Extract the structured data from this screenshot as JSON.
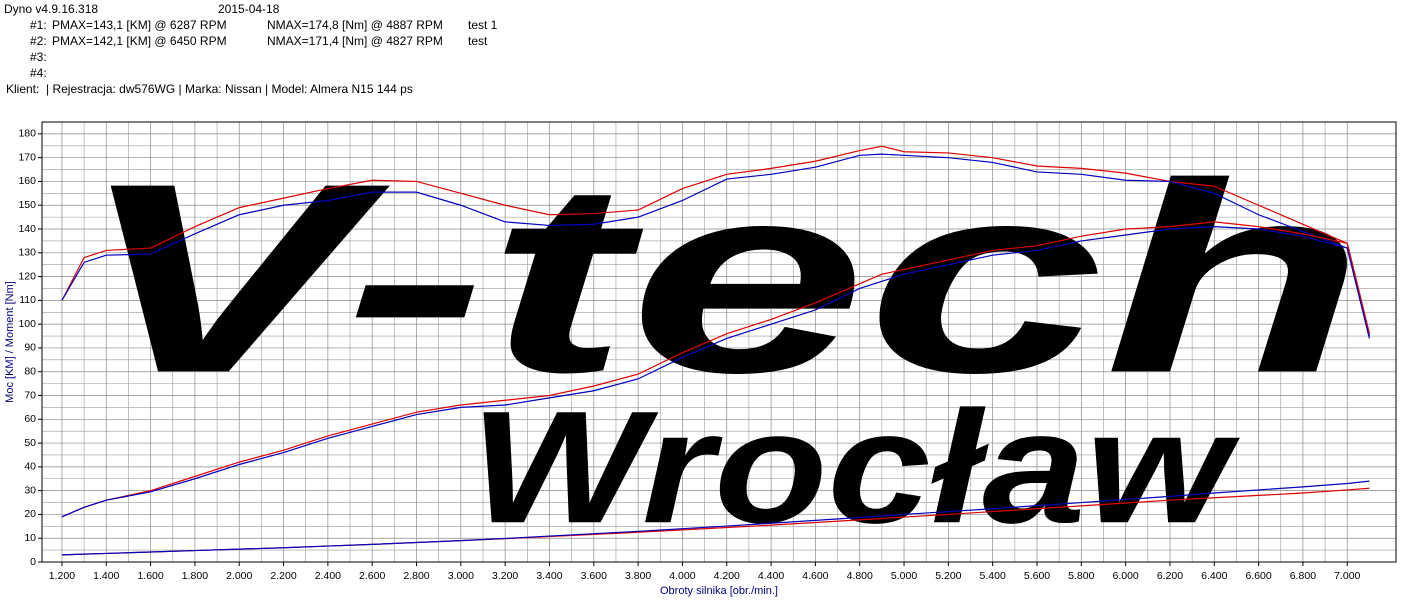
{
  "header": {
    "app": "Dyno v4.9.16.318",
    "date": "2015-04-18",
    "runs": [
      {
        "id": "#1:",
        "pmax": "PMAX=143,1 [KM] @ 6287 RPM",
        "nmax": "NMAX=174,8 [Nm] @ 4887 RPM",
        "note": "test 1"
      },
      {
        "id": "#2:",
        "pmax": "PMAX=142,1 [KM] @ 6450 RPM",
        "nmax": "NMAX=171,4 [Nm] @ 4827 RPM",
        "note": "test"
      },
      {
        "id": "#3:"
      },
      {
        "id": "#4:"
      }
    ],
    "client": "Klient:  | Rejestracja: dw576WG | Marka: Nissan | Model: Almera N15 144 ps"
  },
  "watermark": [
    "V-tech",
    "Wrocław"
  ],
  "chart_data": {
    "type": "line",
    "y_label": "Moc [KM] / Moment [Nm]",
    "x_label": "Obroty silnika [obr./min.]",
    "x": [
      1200,
      1300,
      1400,
      1600,
      1800,
      2000,
      2200,
      2400,
      2600,
      2800,
      3000,
      3200,
      3400,
      3600,
      3800,
      4000,
      4200,
      4400,
      4600,
      4800,
      4900,
      5000,
      5200,
      5400,
      5600,
      5800,
      6000,
      6200,
      6400,
      6600,
      6800,
      7000,
      7100
    ],
    "series": [
      {
        "color": "#e00000",
        "values": [
          110,
          128,
          131,
          132,
          141,
          149,
          153,
          157,
          160.5,
          160,
          155,
          150,
          146,
          146.5,
          148,
          157,
          163,
          165.5,
          168.5,
          173,
          174.8,
          172.5,
          172,
          170,
          166.5,
          165.5,
          163.5,
          160,
          158,
          150,
          142,
          134,
          96
        ]
      },
      {
        "color": "#0000c0",
        "values": [
          110,
          126,
          129,
          129.5,
          138,
          146,
          150,
          152,
          155.5,
          155.5,
          150,
          143,
          141.5,
          142,
          145,
          152,
          161,
          163,
          166,
          171,
          171.5,
          171,
          170,
          168,
          164,
          163,
          160.5,
          160,
          155,
          146,
          139,
          132,
          95
        ]
      },
      {
        "color": "#e00000",
        "values": [
          19,
          23,
          26,
          30,
          36,
          42,
          47,
          53,
          58,
          63,
          66,
          68,
          70,
          74,
          79,
          88,
          96,
          102,
          109,
          117,
          121,
          123,
          127,
          131,
          133,
          137,
          140,
          141,
          143,
          141,
          138,
          134,
          96
        ]
      },
      {
        "color": "#0000c0",
        "values": [
          19,
          23,
          26,
          29.5,
          35,
          41,
          46,
          52,
          57,
          62,
          65,
          66,
          69,
          72,
          77,
          86,
          94,
          100,
          106,
          115,
          118,
          121,
          125,
          129,
          131,
          135,
          137.5,
          140,
          141,
          140,
          137,
          132,
          94
        ]
      },
      {
        "color": "#e00000",
        "values": [
          3,
          3.3,
          3.6,
          4.2,
          4.8,
          5.4,
          6,
          6.7,
          7.4,
          8.2,
          9,
          9.8,
          10.7,
          11.6,
          12.5,
          13.5,
          14.5,
          15.5,
          16.6,
          17.7,
          18.3,
          18.9,
          20,
          21.2,
          22.4,
          23.6,
          24.8,
          26,
          27,
          28,
          29,
          30.3,
          31
        ]
      },
      {
        "color": "#0000c0",
        "values": [
          3,
          3.3,
          3.6,
          4.2,
          4.8,
          5.4,
          6,
          6.7,
          7.4,
          8.2,
          9,
          9.9,
          10.9,
          11.9,
          12.9,
          14,
          15.1,
          16.3,
          17.5,
          18.7,
          19.3,
          20,
          21.2,
          22.4,
          23.7,
          25,
          26.3,
          27.6,
          29,
          30.3,
          31.6,
          33,
          34
        ]
      }
    ],
    "xlim": [
      1110,
      7220
    ],
    "ylim": [
      0,
      185
    ],
    "xticks": [
      {
        "value": 1200,
        "label": "1.200"
      },
      {
        "value": 1400,
        "label": "1.400"
      },
      {
        "value": 1600,
        "label": "1.600"
      },
      {
        "value": 1800,
        "label": "1.800"
      },
      {
        "value": 2000,
        "label": "2.000"
      },
      {
        "value": 2200,
        "label": "2.200"
      },
      {
        "value": 2400,
        "label": "2.400"
      },
      {
        "value": 2600,
        "label": "2.600"
      },
      {
        "value": 2800,
        "label": "2.800"
      },
      {
        "value": 3000,
        "label": "3.000"
      },
      {
        "value": 3200,
        "label": "3.200"
      },
      {
        "value": 3400,
        "label": "3.400"
      },
      {
        "value": 3600,
        "label": "3.600"
      },
      {
        "value": 3800,
        "label": "3.800"
      },
      {
        "value": 4000,
        "label": "4.000"
      },
      {
        "value": 4200,
        "label": "4.200"
      },
      {
        "value": 4400,
        "label": "4.400"
      },
      {
        "value": 4600,
        "label": "4.600"
      },
      {
        "value": 4800,
        "label": "4.800"
      },
      {
        "value": 5000,
        "label": "5.000"
      },
      {
        "value": 5200,
        "label": "5.200"
      },
      {
        "value": 5400,
        "label": "5.400"
      },
      {
        "value": 5600,
        "label": "5.600"
      },
      {
        "value": 5800,
        "label": "5.800"
      },
      {
        "value": 6000,
        "label": "6.000"
      },
      {
        "value": 6200,
        "label": "6.200"
      },
      {
        "value": 6400,
        "label": "6.400"
      },
      {
        "value": 6600,
        "label": "6.600"
      },
      {
        "value": 6800,
        "label": "6.800"
      },
      {
        "value": 7000,
        "label": "7.000"
      }
    ],
    "yticks": [
      0,
      10,
      20,
      30,
      40,
      50,
      60,
      70,
      80,
      90,
      100,
      110,
      120,
      130,
      140,
      150,
      160,
      170,
      180
    ],
    "grid": true
  }
}
